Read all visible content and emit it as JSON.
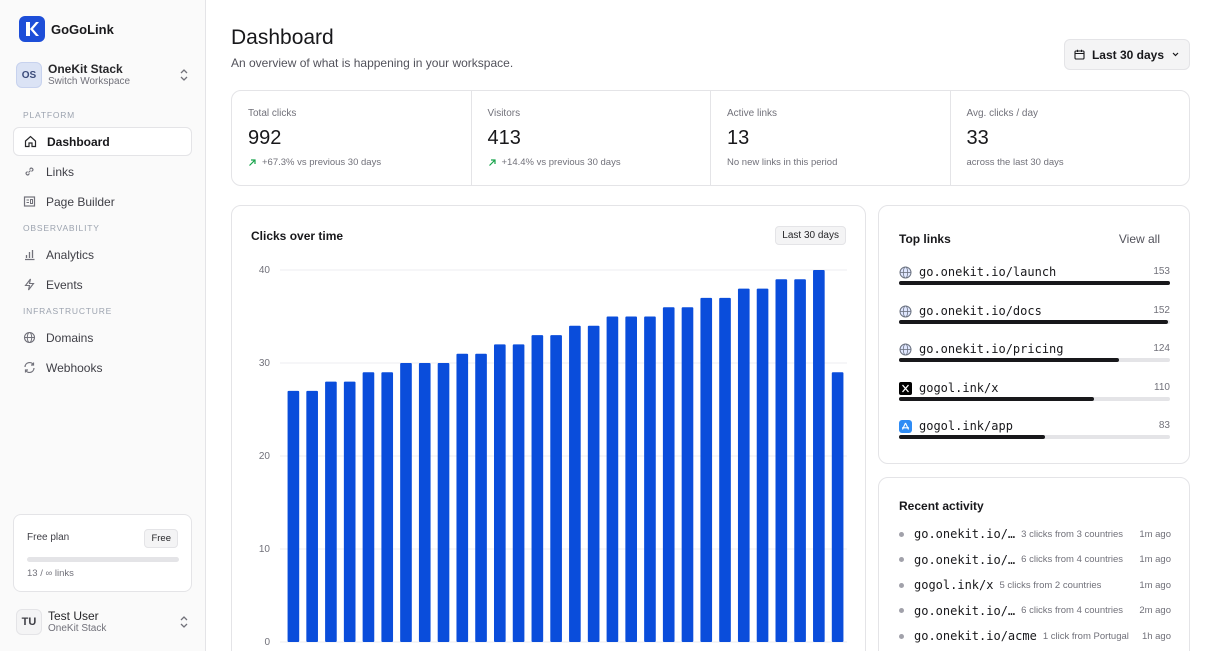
{
  "app": {
    "name": "GoGoLink",
    "logo_letter": "K",
    "brand_color": "#1d4ed8"
  },
  "workspace": {
    "initials": "OS",
    "name": "OneKit Stack",
    "subtitle": "Switch Workspace"
  },
  "nav": {
    "sections": [
      {
        "label": "PLATFORM",
        "items": [
          {
            "label": "Dashboard",
            "icon": "home-icon",
            "active": true
          },
          {
            "label": "Links",
            "icon": "link-icon"
          },
          {
            "label": "Page Builder",
            "icon": "layout-icon"
          }
        ]
      },
      {
        "label": "OBSERVABILITY",
        "items": [
          {
            "label": "Analytics",
            "icon": "bar-chart-icon"
          },
          {
            "label": "Events",
            "icon": "zap-icon"
          }
        ]
      },
      {
        "label": "INFRASTRUCTURE",
        "items": [
          {
            "label": "Domains",
            "icon": "globe-icon"
          },
          {
            "label": "Webhooks",
            "icon": "refresh-icon"
          }
        ]
      }
    ]
  },
  "plan": {
    "title": "Free plan",
    "badge": "Free",
    "usage": "13 / ∞ links"
  },
  "user": {
    "initials": "TU",
    "name": "Test User",
    "workspace": "OneKit Stack"
  },
  "header": {
    "title": "Dashboard",
    "subtitle": "An overview of what is happening in your workspace.",
    "range_button": "Last 30 days"
  },
  "stats": [
    {
      "label": "Total clicks",
      "value": "992",
      "note": "+67.3% vs previous 30 days",
      "trend": "up"
    },
    {
      "label": "Visitors",
      "value": "413",
      "note": "+14.4% vs previous 30 days",
      "trend": "up"
    },
    {
      "label": "Active links",
      "value": "13",
      "note": "No new links in this period",
      "trend": "none"
    },
    {
      "label": "Avg. clicks / day",
      "value": "33",
      "note": "across the last 30 days",
      "trend": "none"
    }
  ],
  "chart": {
    "title": "Clicks over time",
    "range_badge": "Last 30 days",
    "bar_color": "#0a4ddb"
  },
  "chart_data": {
    "type": "bar",
    "title": "Clicks over time",
    "xlabel": "",
    "ylabel": "",
    "ylim": [
      0,
      40
    ],
    "yticks": [
      0,
      10,
      20,
      30,
      40
    ],
    "grid": true,
    "values": [
      27,
      27,
      28,
      28,
      29,
      29,
      30,
      30,
      30,
      31,
      31,
      32,
      32,
      33,
      33,
      34,
      34,
      35,
      35,
      35,
      36,
      36,
      37,
      37,
      38,
      38,
      39,
      39,
      40,
      29
    ]
  },
  "top_links": {
    "title": "Top links",
    "view_all": "View all",
    "items": [
      {
        "name": "go.onekit.io/launch",
        "count": "153",
        "fraction": 1.0,
        "icon": "globe-icon"
      },
      {
        "name": "go.onekit.io/docs",
        "count": "152",
        "fraction": 0.993,
        "icon": "globe-icon"
      },
      {
        "name": "go.onekit.io/pricing",
        "count": "124",
        "fraction": 0.81,
        "icon": "globe-icon"
      },
      {
        "name": "gogol.ink/x",
        "count": "110",
        "fraction": 0.72,
        "icon": "x-logo-icon"
      },
      {
        "name": "gogol.ink/app",
        "count": "83",
        "fraction": 0.54,
        "icon": "app-store-icon"
      }
    ]
  },
  "activity": {
    "title": "Recent activity",
    "items": [
      {
        "link": "go.onekit.io/…",
        "desc": "3 clicks from 3 countries",
        "time": "1m ago"
      },
      {
        "link": "go.onekit.io/…",
        "desc": "6 clicks from 4 countries",
        "time": "1m ago"
      },
      {
        "link": "gogol.ink/x",
        "desc": "5 clicks from 2 countries",
        "time": "1m ago"
      },
      {
        "link": "go.onekit.io/…",
        "desc": "6 clicks from 4 countries",
        "time": "2m ago"
      },
      {
        "link": "go.onekit.io/acme",
        "desc": "1 click from Portugal",
        "time": "1h ago"
      }
    ]
  }
}
